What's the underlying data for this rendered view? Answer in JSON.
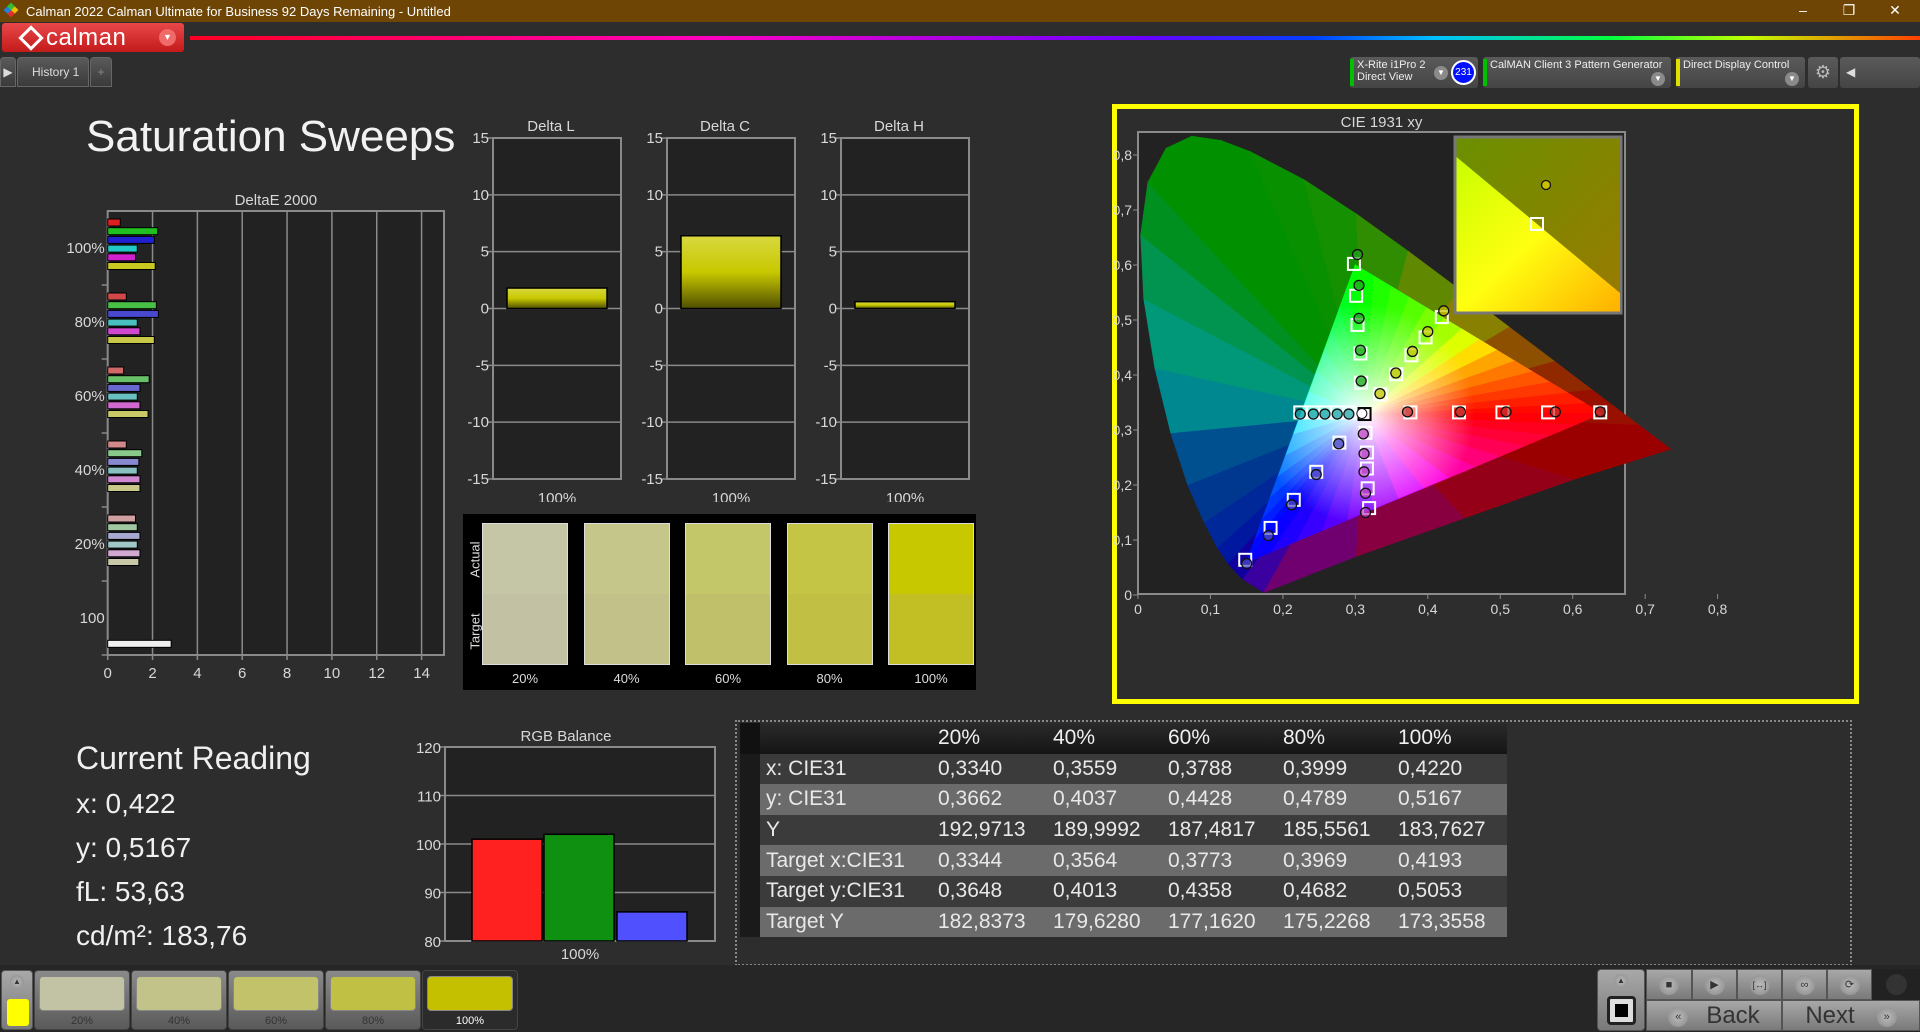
{
  "window": {
    "title": "Calman 2022 Calman Ultimate for Business 92 Days Remaining  - Untitled",
    "minimize": "–",
    "restore": "❐",
    "close": "✕"
  },
  "app": {
    "logo": "calman",
    "history_tab": "History 1",
    "add_tab": "+"
  },
  "toolbar": {
    "meter_line1": "X-Rite i1Pro 2",
    "meter_line2": "Direct View",
    "meter_badge": "231",
    "pattern_generator": "CalMAN Client 3 Pattern Generator",
    "display_control": "Direct Display Control",
    "meter_status_color": "#00c000",
    "generator_status_color": "#00c000",
    "display_status_color": "#e0e000"
  },
  "page_title": "Saturation Sweeps",
  "current_reading": {
    "title": "Current Reading",
    "x": "x: 0,422",
    "y": "y: 0,5167",
    "fl": "fL: 53,63",
    "cdm2": "cd/m²: 183,76"
  },
  "swatches": {
    "actual_label": "Actual",
    "target_label": "Target",
    "items": [
      {
        "label": "20%",
        "actual": "#c5c6a5",
        "target": "#c2c1a4"
      },
      {
        "label": "40%",
        "actual": "#c5c68a",
        "target": "#c2c189"
      },
      {
        "label": "60%",
        "actual": "#c4c66a",
        "target": "#c1c06a"
      },
      {
        "label": "80%",
        "actual": "#c4c544",
        "target": "#c1c045"
      },
      {
        "label": "100%",
        "actual": "#c8c800",
        "target": "#c1bf24"
      }
    ]
  },
  "table": {
    "headers": [
      "",
      "20%",
      "40%",
      "60%",
      "80%",
      "100%"
    ],
    "rows": [
      {
        "label": "x: CIE31",
        "values": [
          "0,3340",
          "0,3559",
          "0,3788",
          "0,3999",
          "0,4220"
        ]
      },
      {
        "label": "y: CIE31",
        "values": [
          "0,3662",
          "0,4037",
          "0,4428",
          "0,4789",
          "0,5167"
        ]
      },
      {
        "label": "Y",
        "values": [
          "192,9713",
          "189,9992",
          "187,4817",
          "185,5561",
          "183,7627"
        ]
      },
      {
        "label": "Target x:CIE31",
        "values": [
          "0,3344",
          "0,3564",
          "0,3773",
          "0,3969",
          "0,4193"
        ]
      },
      {
        "label": "Target y:CIE31",
        "values": [
          "0,3648",
          "0,4013",
          "0,4358",
          "0,4682",
          "0,5053"
        ]
      },
      {
        "label": "Target Y",
        "values": [
          "182,8373",
          "179,6280",
          "177,1620",
          "175,2268",
          "173,3558"
        ]
      }
    ]
  },
  "patches": {
    "current_color": "#ffff00",
    "items": [
      {
        "label": "20%",
        "color": "#c2c3a5",
        "selected": false
      },
      {
        "label": "40%",
        "color": "#c2c389",
        "selected": false
      },
      {
        "label": "60%",
        "color": "#c2c26a",
        "selected": false
      },
      {
        "label": "80%",
        "color": "#c0c045",
        "selected": false
      },
      {
        "label": "100%",
        "color": "#c4c000",
        "selected": true
      }
    ]
  },
  "nav": {
    "back": "Back",
    "next": "Next",
    "back_icon": "«",
    "next_icon": "»"
  },
  "chart_data": [
    {
      "id": "deltae",
      "type": "bar",
      "orientation": "horizontal",
      "title": "DeltaE 2000",
      "xlim": [
        0,
        15
      ],
      "xticks": [
        0,
        2,
        4,
        6,
        8,
        10,
        12,
        14
      ],
      "categories": [
        "100%",
        "80%",
        "60%",
        "40%",
        "20%",
        "100"
      ],
      "groups": [
        {
          "bars": [
            {
              "color": "#e02020",
              "value": 0.56
            },
            {
              "color": "#20c020",
              "value": 2.23
            },
            {
              "color": "#2020d0",
              "value": 2.08
            },
            {
              "color": "#20c8c8",
              "value": 1.32
            },
            {
              "color": "#d020d0",
              "value": 1.24
            },
            {
              "color": "#c8c820",
              "value": 2.12
            }
          ]
        },
        {
          "bars": [
            {
              "color": "#d04848",
              "value": 0.83
            },
            {
              "color": "#48c048",
              "value": 2.17
            },
            {
              "color": "#4848d0",
              "value": 2.26
            },
            {
              "color": "#48c0c0",
              "value": 1.32
            },
            {
              "color": "#d048d0",
              "value": 1.44
            },
            {
              "color": "#c8c848",
              "value": 2.08
            }
          ]
        },
        {
          "bars": [
            {
              "color": "#d06868",
              "value": 0.71
            },
            {
              "color": "#68c068",
              "value": 1.85
            },
            {
              "color": "#6868d0",
              "value": 1.44
            },
            {
              "color": "#68c0c0",
              "value": 1.32
            },
            {
              "color": "#d068d0",
              "value": 1.44
            },
            {
              "color": "#c8c868",
              "value": 1.8
            }
          ]
        },
        {
          "bars": [
            {
              "color": "#d08888",
              "value": 0.83
            },
            {
              "color": "#88c888",
              "value": 1.52
            },
            {
              "color": "#8888d0",
              "value": 1.39
            },
            {
              "color": "#88c0c0",
              "value": 1.32
            },
            {
              "color": "#d088d0",
              "value": 1.44
            },
            {
              "color": "#c8c888",
              "value": 1.44
            }
          ]
        },
        {
          "bars": [
            {
              "color": "#d0a0a0",
              "value": 1.24
            },
            {
              "color": "#a0c8a0",
              "value": 1.32
            },
            {
              "color": "#a8a8d0",
              "value": 1.44
            },
            {
              "color": "#a0c8c8",
              "value": 1.32
            },
            {
              "color": "#d0a8d0",
              "value": 1.44
            },
            {
              "color": "#c8c8a8",
              "value": 1.39
            }
          ]
        },
        {
          "bars": [
            {
              "color": "#f0f0f0",
              "value": 2.83,
              "slot": 5
            }
          ]
        }
      ]
    },
    {
      "id": "deltal",
      "type": "bar",
      "title": "Delta L",
      "ylim": [
        -15,
        15
      ],
      "yticks": [
        15,
        10,
        5,
        0,
        -5,
        -10,
        -15
      ],
      "categories": [
        "100%"
      ],
      "values": [
        1.8
      ],
      "color": "#c8c800"
    },
    {
      "id": "deltac",
      "type": "bar",
      "title": "Delta C",
      "ylim": [
        -15,
        15
      ],
      "yticks": [
        15,
        10,
        5,
        0,
        -5,
        -10,
        -15
      ],
      "categories": [
        "100%"
      ],
      "values": [
        6.4
      ],
      "color": "#c8c800"
    },
    {
      "id": "deltah",
      "type": "bar",
      "title": "Delta H",
      "ylim": [
        -15,
        15
      ],
      "yticks": [
        15,
        10,
        5,
        0,
        -5,
        -10,
        -15
      ],
      "categories": [
        "100%"
      ],
      "values": [
        0.6
      ],
      "color": "#c8c800"
    },
    {
      "id": "rgb",
      "type": "bar",
      "title": "RGB Balance",
      "ylim": [
        80,
        120
      ],
      "yticks": [
        120,
        110,
        100,
        90,
        80
      ],
      "categories": [
        "100%"
      ],
      "series": [
        {
          "color": "#ff2020",
          "values": [
            101
          ]
        },
        {
          "color": "#109010",
          "values": [
            102
          ]
        },
        {
          "color": "#5050ff",
          "values": [
            86
          ]
        }
      ]
    },
    {
      "id": "cie",
      "type": "scatter",
      "title": "CIE 1931 xy",
      "xlim": [
        0,
        0.8
      ],
      "ylim": [
        0,
        0.8
      ],
      "xticks": [
        "0",
        "0,1",
        "0,2",
        "0,3",
        "0,4",
        "0,5",
        "0,6",
        "0,7",
        "0,8"
      ],
      "yticks": [
        "0",
        "0,1",
        "0,2",
        "0,3",
        "0,4",
        "0,5",
        "0,6",
        "0,7",
        "0,8"
      ],
      "gamut": {
        "red": [
          0.64,
          0.33
        ],
        "green": [
          0.3,
          0.6
        ],
        "blue": [
          0.15,
          0.06
        ],
        "white": [
          0.3127,
          0.329
        ]
      },
      "highlight_color": "#ffff00",
      "sweeps": [
        {
          "color": "#20a020",
          "targets": [
            [
              0.308,
              0.386
            ],
            [
              0.307,
              0.439
            ],
            [
              0.303,
              0.491
            ],
            [
              0.301,
              0.544
            ],
            [
              0.298,
              0.602
            ]
          ],
          "actual": [
            [
              0.308,
              0.389
            ],
            [
              0.307,
              0.445
            ],
            [
              0.305,
              0.503
            ],
            [
              0.305,
              0.563
            ],
            [
              0.303,
              0.619
            ]
          ]
        },
        {
          "color": "#c8c000",
          "targets": [
            [
              0.3344,
              0.3648
            ],
            [
              0.3564,
              0.4013
            ],
            [
              0.3773,
              0.4358
            ],
            [
              0.3969,
              0.4682
            ],
            [
              0.4193,
              0.5053
            ]
          ],
          "actual": [
            [
              0.334,
              0.3662
            ],
            [
              0.3559,
              0.4037
            ],
            [
              0.3788,
              0.4428
            ],
            [
              0.3999,
              0.4789
            ],
            [
              0.422,
              0.5167
            ]
          ]
        },
        {
          "color": "#c03030",
          "targets": [
            [
              0.376,
              0.332
            ],
            [
              0.443,
              0.332
            ],
            [
              0.503,
              0.332
            ],
            [
              0.566,
              0.332
            ],
            [
              0.638,
              0.332
            ]
          ],
          "actual": [
            [
              0.372,
              0.333
            ],
            [
              0.445,
              0.333
            ],
            [
              0.508,
              0.333
            ],
            [
              0.576,
              0.333
            ],
            [
              0.638,
              0.333
            ]
          ]
        },
        {
          "color": "#20a0a0",
          "targets": [
            [
              0.292,
              0.332
            ],
            [
              0.275,
              0.332
            ],
            [
              0.258,
              0.332
            ],
            [
              0.242,
              0.332
            ],
            [
              0.224,
              0.332
            ]
          ],
          "actual": [
            [
              0.291,
              0.329
            ],
            [
              0.275,
              0.329
            ],
            [
              0.258,
              0.329
            ],
            [
              0.242,
              0.329
            ],
            [
              0.224,
              0.329
            ]
          ]
        },
        {
          "color": "#5050c0",
          "targets": [
            [
              0.278,
              0.277
            ],
            [
              0.246,
              0.224
            ],
            [
              0.215,
              0.173
            ],
            [
              0.183,
              0.122
            ],
            [
              0.148,
              0.064
            ]
          ],
          "actual": [
            [
              0.277,
              0.275
            ],
            [
              0.246,
              0.219
            ],
            [
              0.212,
              0.164
            ],
            [
              0.18,
              0.108
            ],
            [
              0.15,
              0.057
            ]
          ]
        },
        {
          "color": "#c040c0",
          "targets": [
            [
              0.314,
              0.295
            ],
            [
              0.316,
              0.259
            ],
            [
              0.316,
              0.23
            ],
            [
              0.317,
              0.194
            ],
            [
              0.319,
              0.158
            ]
          ],
          "actual": [
            [
              0.311,
              0.293
            ],
            [
              0.312,
              0.257
            ],
            [
              0.312,
              0.224
            ],
            [
              0.314,
              0.185
            ],
            [
              0.314,
              0.15
            ]
          ]
        }
      ],
      "white_actual": [
        0.309,
        0.33
      ]
    }
  ]
}
